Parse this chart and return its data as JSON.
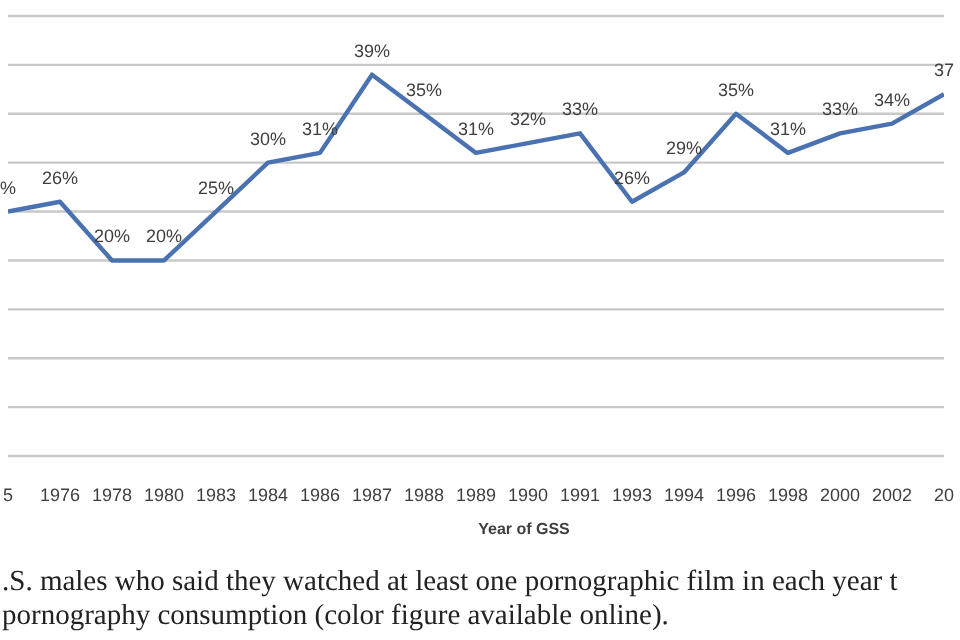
{
  "chart_data": {
    "type": "line",
    "xlabel": "Year of GSS",
    "categories": [
      "5",
      "1976",
      "1978",
      "1980",
      "1983",
      "1984",
      "1986",
      "1987",
      "1988",
      "1989",
      "1990",
      "1991",
      "1993",
      "1994",
      "1996",
      "1998",
      "2000",
      "2002",
      "20"
    ],
    "series": [
      {
        "color": "#4a72b0",
        "values": [
          25,
          26,
          20,
          20,
          25,
          30,
          31,
          39,
          35,
          31,
          32,
          33,
          26,
          29,
          35,
          31,
          33,
          34,
          37
        ],
        "value_labels": [
          "%",
          "26%",
          "20%",
          "20%",
          "25%",
          "30%",
          "31%",
          "39%",
          "35%",
          "31%",
          "32%",
          "33%",
          "26%",
          "29%",
          "35%",
          "31%",
          "33%",
          "34%",
          "37"
        ]
      }
    ],
    "ylim": [
      0,
      45
    ],
    "tick_labels": "x",
    "grid": "y",
    "legend": false,
    "marker": "none",
    "line_style": "solid",
    "annotations": [
      ".S. males who said they watched at least one pornographic film in each year t",
      "pornography consumption (color figure available online)."
    ]
  }
}
